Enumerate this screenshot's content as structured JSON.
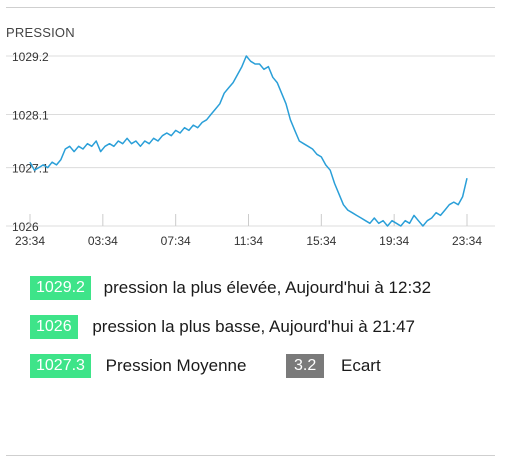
{
  "chart_data": {
    "type": "line",
    "title": "PRESSION",
    "y_ticks": [
      1026,
      1027.1,
      1028.1,
      1029.2
    ],
    "x_ticks": [
      "23:34",
      "03:34",
      "07:34",
      "11:34",
      "15:34",
      "19:34",
      "23:34"
    ],
    "ylim": [
      1026,
      1029.2
    ],
    "grid": true,
    "line_color": "#2a9fd8",
    "series": [
      {
        "values": [
          1027.2,
          1027.05,
          1027.1,
          1027.15,
          1027.1,
          1027.2,
          1027.15,
          1027.25,
          1027.45,
          1027.5,
          1027.4,
          1027.5,
          1027.45,
          1027.55,
          1027.5,
          1027.6,
          1027.4,
          1027.5,
          1027.55,
          1027.5,
          1027.6,
          1027.55,
          1027.65,
          1027.55,
          1027.6,
          1027.5,
          1027.6,
          1027.55,
          1027.65,
          1027.6,
          1027.7,
          1027.75,
          1027.7,
          1027.8,
          1027.75,
          1027.85,
          1027.8,
          1027.9,
          1027.85,
          1027.95,
          1028.0,
          1028.1,
          1028.2,
          1028.3,
          1028.5,
          1028.6,
          1028.7,
          1028.85,
          1029.0,
          1029.2,
          1029.1,
          1029.05,
          1029.05,
          1028.95,
          1029.0,
          1028.8,
          1028.7,
          1028.5,
          1028.3,
          1028.0,
          1027.8,
          1027.6,
          1027.55,
          1027.5,
          1027.45,
          1027.35,
          1027.3,
          1027.15,
          1027.05,
          1026.8,
          1026.6,
          1026.4,
          1026.3,
          1026.25,
          1026.2,
          1026.15,
          1026.1,
          1026.05,
          1026.15,
          1026.05,
          1026.1,
          1026.0,
          1026.1,
          1026.05,
          1026.0,
          1026.1,
          1026.05,
          1026.2,
          1026.1,
          1026.0,
          1026.1,
          1026.15,
          1026.25,
          1026.2,
          1026.3,
          1026.4,
          1026.45,
          1026.4,
          1026.55,
          1026.9
        ]
      }
    ]
  },
  "stats": {
    "max_value": "1029.2",
    "max_text": "pression la plus élevée, Aujourd'hui à 12:32",
    "min_value": "1026",
    "min_text": "pression la plus basse, Aujourd'hui à 21:47",
    "avg_value": "1027.3",
    "avg_text": "Pression Moyenne",
    "range_value": "3.2",
    "range_text": "Ecart"
  },
  "colors": {
    "badge_green": "#3ee489",
    "badge_gray": "#7a7a7a"
  }
}
